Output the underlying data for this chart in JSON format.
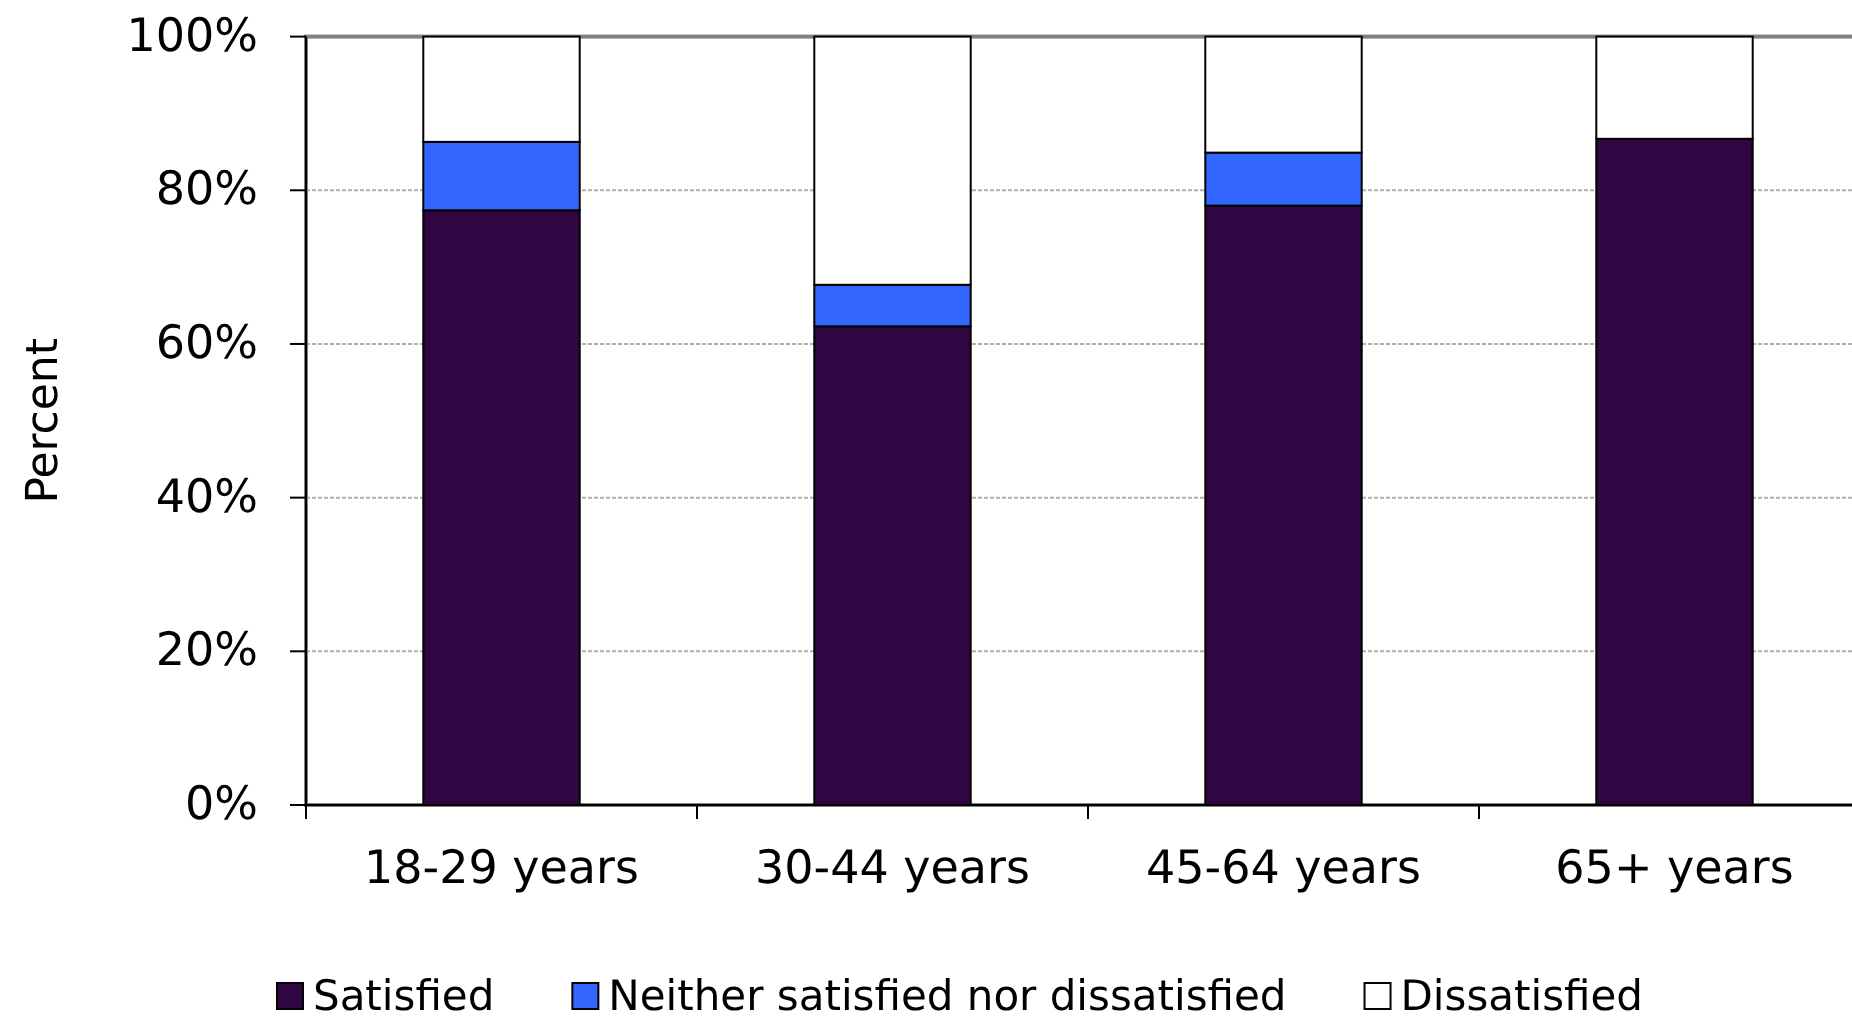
{
  "chart_data": {
    "type": "bar",
    "stacked": true,
    "ylabel": "Percent",
    "categories": [
      "18-29 years",
      "30-44 years",
      "45-64 years",
      "65+ years"
    ],
    "series": [
      {
        "name": "Satisfied",
        "color": "#2f0642",
        "values": [
          77.4,
          62.3,
          78.0,
          86.7
        ]
      },
      {
        "name": "Neither satisfied nor dissatisfied",
        "color": "#3366ff",
        "values": [
          8.9,
          5.4,
          6.9,
          0
        ]
      },
      {
        "name": "Dissatisfied",
        "color": "#ffffff",
        "values": [
          13.7,
          32.3,
          15.1,
          13.3
        ]
      }
    ],
    "ylim": [
      0,
      100
    ],
    "yticks": [
      {
        "value": 0,
        "label": "0%"
      },
      {
        "value": 20,
        "label": "20%"
      },
      {
        "value": 40,
        "label": "40%"
      },
      {
        "value": 60,
        "label": "60%"
      },
      {
        "value": 80,
        "label": "80%"
      },
      {
        "value": 100,
        "label": "100%"
      }
    ],
    "grid": "y",
    "legend": "bottom"
  }
}
